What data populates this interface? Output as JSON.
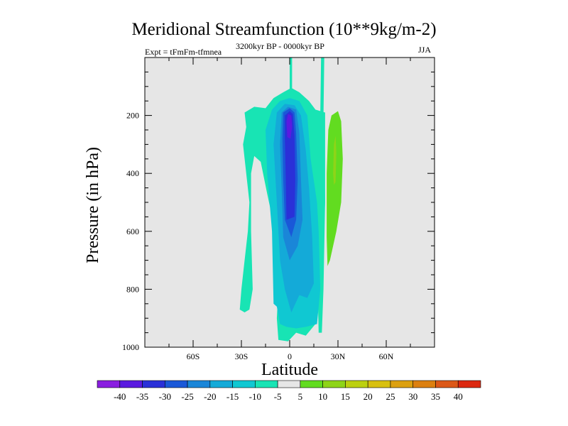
{
  "chart_data": {
    "type": "contour",
    "title": "Meridional Streamfunction (10**9kg/m-2)",
    "subtitle_left": "Expt = tFmFm-tfmnea",
    "subtitle_center": "3200kyr BP - 0000kyr BP",
    "subtitle_right": "JJA",
    "xlabel": "Latitude",
    "ylabel": "Pressure (in hPa)",
    "xlim": [
      -90,
      90
    ],
    "ylim": [
      1000,
      0
    ],
    "x_ticks": [
      {
        "value": -60,
        "label": "60S"
      },
      {
        "value": -30,
        "label": "30S"
      },
      {
        "value": 0,
        "label": "0"
      },
      {
        "value": 30,
        "label": "30N"
      },
      {
        "value": 60,
        "label": "60N"
      }
    ],
    "y_ticks": [
      {
        "value": 200,
        "label": "200"
      },
      {
        "value": 400,
        "label": "400"
      },
      {
        "value": 600,
        "label": "600"
      },
      {
        "value": 800,
        "label": "800"
      },
      {
        "value": 1000,
        "label": "1000"
      }
    ],
    "colorbar": {
      "levels": [
        "-40",
        "-35",
        "-30",
        "-25",
        "-20",
        "-15",
        "-10",
        "-5",
        "5",
        "10",
        "15",
        "20",
        "25",
        "30",
        "35",
        "40"
      ],
      "colors": [
        "#8a1ee0",
        "#5a1ae0",
        "#2a30d8",
        "#1a58d8",
        "#1a86d8",
        "#14aad8",
        "#10c8d2",
        "#18e4b4",
        "#e6e6e6",
        "#62dc20",
        "#8ed418",
        "#bcd010",
        "#d8c010",
        "#dca010",
        "#dc8010",
        "#dc5818",
        "#dc2810"
      ]
    },
    "regions": [
      {
        "name": "cell-minus5-sh-wide",
        "level": -5,
        "points": [
          [
            -28,
            880
          ],
          [
            -31,
            870
          ],
          [
            -30,
            800
          ],
          [
            -28,
            700
          ],
          [
            -26,
            600
          ],
          [
            -25,
            500
          ],
          [
            -27,
            400
          ],
          [
            -29,
            300
          ],
          [
            -27,
            240
          ],
          [
            -28,
            190
          ],
          [
            -22,
            170
          ],
          [
            -15,
            175
          ],
          [
            -10,
            140
          ],
          [
            -4,
            120
          ],
          [
            1,
            105
          ],
          [
            6,
            120
          ],
          [
            12,
            150
          ],
          [
            16,
            180
          ],
          [
            22,
            190
          ],
          [
            22,
            300
          ],
          [
            22,
            500
          ],
          [
            20,
            700
          ],
          [
            18,
            850
          ],
          [
            16,
            920
          ],
          [
            10,
            960
          ],
          [
            4,
            950
          ],
          [
            -1,
            980
          ],
          [
            -7,
            975
          ],
          [
            -8,
            900
          ],
          [
            -7,
            800
          ],
          [
            -9,
            600
          ],
          [
            -14,
            470
          ],
          [
            -18,
            360
          ],
          [
            -22,
            340
          ],
          [
            -24,
            400
          ],
          [
            -24,
            600
          ],
          [
            -23,
            800
          ],
          [
            -25,
            870
          ]
        ]
      },
      {
        "name": "cell-minus5-upper-stem",
        "level": -5,
        "points": [
          [
            0,
            0
          ],
          [
            1.5,
            0
          ],
          [
            1.5,
            120
          ],
          [
            0,
            120
          ]
        ]
      },
      {
        "name": "cell-minus5-nh-stem",
        "level": -5,
        "points": [
          [
            19.5,
            0
          ],
          [
            21.5,
            0
          ],
          [
            21,
            200
          ],
          [
            22,
            500
          ],
          [
            21,
            800
          ],
          [
            20,
            950
          ],
          [
            18,
            950
          ],
          [
            17,
            700
          ],
          [
            18,
            400
          ],
          [
            19,
            200
          ]
        ]
      },
      {
        "name": "cell-minus10",
        "level": -10,
        "points": [
          [
            -10,
            850
          ],
          [
            -11,
            600
          ],
          [
            -14,
            400
          ],
          [
            -15,
            250
          ],
          [
            -11,
            180
          ],
          [
            -6,
            150
          ],
          [
            0,
            140
          ],
          [
            6,
            150
          ],
          [
            11,
            200
          ],
          [
            13,
            350
          ],
          [
            17,
            500
          ],
          [
            18,
            600
          ],
          [
            19,
            800
          ],
          [
            17,
            920
          ],
          [
            10,
            930
          ],
          [
            4,
            935
          ],
          [
            -2,
            930
          ],
          [
            -6,
            920
          ],
          [
            -8,
            860
          ]
        ]
      },
      {
        "name": "cell-minus15",
        "level": -15,
        "points": [
          [
            -6,
            700
          ],
          [
            -8,
            500
          ],
          [
            -10,
            300
          ],
          [
            -8,
            190
          ],
          [
            -3,
            160
          ],
          [
            3,
            165
          ],
          [
            7,
            200
          ],
          [
            10,
            320
          ],
          [
            12,
            450
          ],
          [
            14,
            620
          ],
          [
            15,
            780
          ],
          [
            11,
            830
          ],
          [
            6,
            820
          ],
          [
            1,
            880
          ],
          [
            -3,
            800
          ]
        ]
      },
      {
        "name": "cell-minus20",
        "level": -20,
        "points": [
          [
            -4,
            620
          ],
          [
            -5,
            450
          ],
          [
            -6,
            300
          ],
          [
            -5,
            190
          ],
          [
            -1,
            170
          ],
          [
            4,
            180
          ],
          [
            6,
            260
          ],
          [
            7,
            420
          ],
          [
            8,
            560
          ],
          [
            5,
            650
          ],
          [
            0,
            700
          ]
        ]
      },
      {
        "name": "cell-minus25",
        "level": -25,
        "points": [
          [
            -3,
            560
          ],
          [
            -4,
            420
          ],
          [
            -4.5,
            280
          ],
          [
            -4,
            190
          ],
          [
            0,
            175
          ],
          [
            3,
            190
          ],
          [
            4,
            260
          ],
          [
            5,
            420
          ],
          [
            4,
            560
          ],
          [
            1,
            620
          ]
        ]
      },
      {
        "name": "cell-minus30",
        "level": -30,
        "points": [
          [
            -2,
            560
          ],
          [
            -2.5,
            400
          ],
          [
            -3,
            280
          ],
          [
            -3,
            200
          ],
          [
            0,
            185
          ],
          [
            2,
            195
          ],
          [
            3,
            270
          ],
          [
            3.5,
            420
          ],
          [
            3,
            550
          ]
        ]
      },
      {
        "name": "cell-minus35",
        "level": -35,
        "points": [
          [
            -1.5,
            275
          ],
          [
            -2,
            220
          ],
          [
            -1,
            195
          ],
          [
            1,
            200
          ],
          [
            1.5,
            240
          ],
          [
            0.5,
            280
          ]
        ]
      },
      {
        "name": "cell-plus5",
        "level": 5,
        "points": [
          [
            23.5,
            720
          ],
          [
            23,
            620
          ],
          [
            23,
            400
          ],
          [
            24,
            250
          ],
          [
            26,
            200
          ],
          [
            30,
            185
          ],
          [
            32,
            220
          ],
          [
            33,
            350
          ],
          [
            32,
            500
          ],
          [
            29,
            600
          ],
          [
            27,
            650
          ],
          [
            25,
            700
          ]
        ]
      },
      {
        "name": "cell-plus10",
        "level": 10,
        "points": [
          [
            27,
            400
          ],
          [
            27.5,
            300
          ],
          [
            28.5,
            270
          ],
          [
            29,
            330
          ],
          [
            28.5,
            430
          ],
          [
            27.5,
            440
          ]
        ]
      }
    ]
  }
}
